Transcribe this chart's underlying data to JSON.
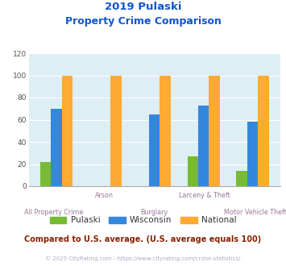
{
  "title_line1": "2019 Pulaski",
  "title_line2": "Property Crime Comparison",
  "categories": [
    "All Property Crime",
    "Arson",
    "Burglary",
    "Larceny & Theft",
    "Motor Vehicle Theft"
  ],
  "pulaski": [
    22,
    0,
    0,
    27,
    14
  ],
  "wisconsin": [
    70,
    0,
    65,
    73,
    58
  ],
  "national": [
    100,
    100,
    100,
    100,
    100
  ],
  "bar_colors": {
    "pulaski": "#77bb33",
    "wisconsin": "#3388dd",
    "national": "#ffaa33"
  },
  "ylim": [
    0,
    120
  ],
  "yticks": [
    0,
    20,
    40,
    60,
    80,
    100,
    120
  ],
  "bg_color": "#ddeef5",
  "title_color": "#1155cc",
  "xlabel_color": "#997799",
  "legend_labels": [
    "Pulaski",
    "Wisconsin",
    "National"
  ],
  "legend_text_color": "#333333",
  "footer_text": "Compared to U.S. average. (U.S. average equals 100)",
  "footer_color": "#882200",
  "credit_text": "© 2025 CityRating.com - https://www.cityrating.com/crime-statistics/",
  "credit_color": "#aaaacc",
  "grid_color": "#ffffff"
}
